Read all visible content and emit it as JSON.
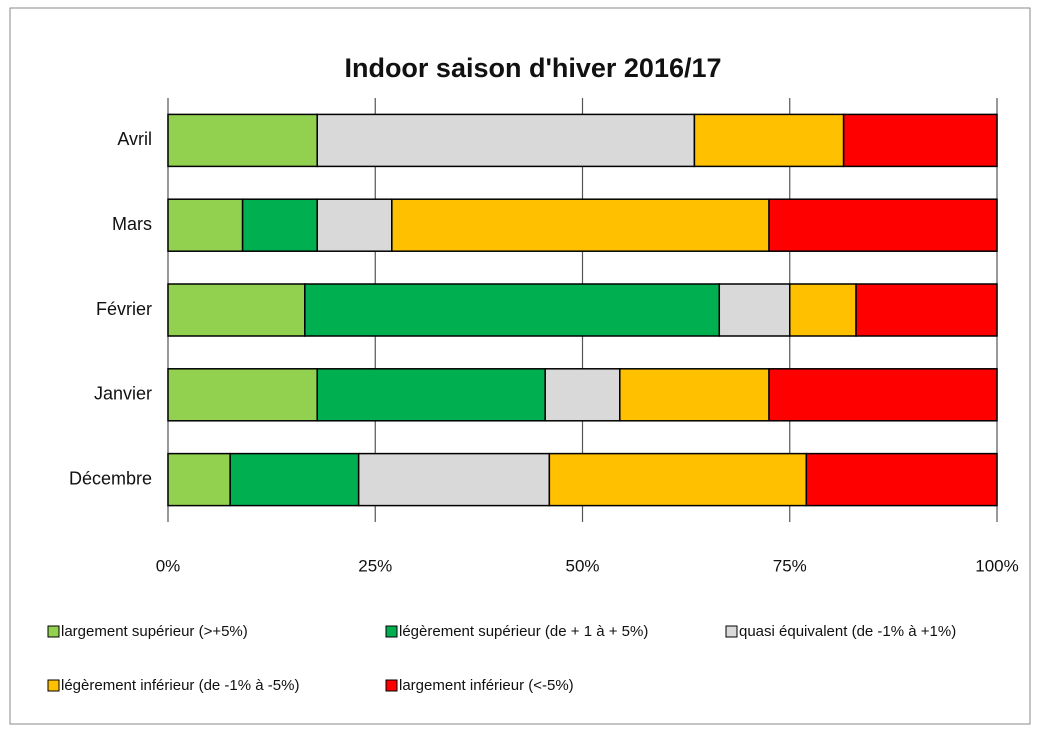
{
  "chart_data": {
    "type": "stacked-barh",
    "title": "Indoor  saison d'hiver 2016/17",
    "categories": [
      "Avril",
      "Mars",
      "Février",
      "Janvier",
      "Décembre"
    ],
    "series": [
      {
        "name": "largement supérieur (>+5%)",
        "color": "#92d050",
        "values": [
          18,
          9,
          16.5,
          18,
          7.5
        ]
      },
      {
        "name": "légèrement supérieur (de + 1 à + 5%)",
        "color": "#00b050",
        "values": [
          0,
          9,
          50,
          27.5,
          15.5
        ]
      },
      {
        "name": "quasi équivalent (de  -1% à +1%)",
        "color": "#d9d9d9",
        "values": [
          45.5,
          9,
          8.5,
          9,
          23
        ]
      },
      {
        "name": "légèrement inférieur (de -1% à -5%)",
        "color": "#ffc000",
        "values": [
          18,
          45.5,
          8,
          18,
          31
        ]
      },
      {
        "name": "largement inférieur (<-5%)",
        "color": "#ff0000",
        "values": [
          18.5,
          27.5,
          17,
          27.5,
          23
        ]
      }
    ],
    "xlim": [
      0,
      100
    ],
    "xticks": [
      {
        "value": 0,
        "label": "0%"
      },
      {
        "value": 25,
        "label": "25%"
      },
      {
        "value": 50,
        "label": "50%"
      },
      {
        "value": 75,
        "label": "75%"
      },
      {
        "value": 100,
        "label": "100%"
      }
    ],
    "grid": true
  }
}
